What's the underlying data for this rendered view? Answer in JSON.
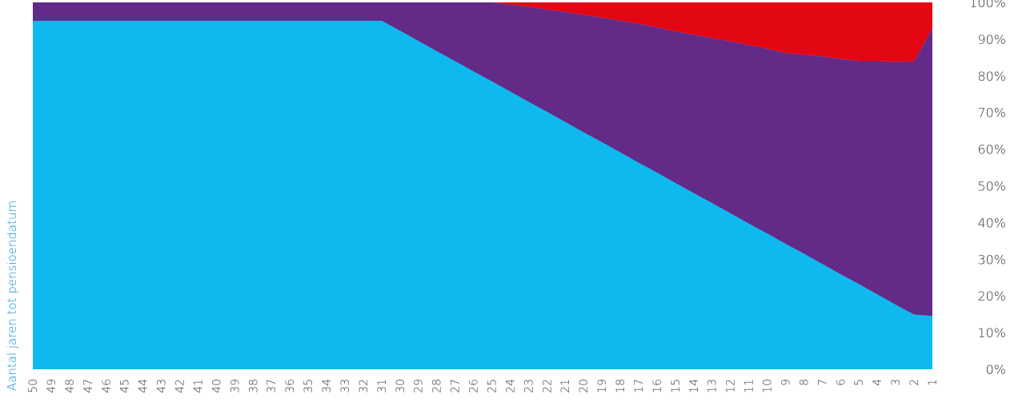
{
  "chart_data": {
    "type": "area",
    "stacked": true,
    "ylabel": "Aantal jaren tot pensioendatum",
    "ylim": [
      0,
      100
    ],
    "y_axis_position": "right",
    "x_ticks": [
      "50",
      "49",
      "48",
      "47",
      "46",
      "45",
      "44",
      "43",
      "42",
      "41",
      "40",
      "39",
      "38",
      "37",
      "36",
      "35",
      "34",
      "33",
      "32",
      "31",
      "30",
      "29",
      "28",
      "27",
      "26",
      "25",
      "24",
      "23",
      "22",
      "21",
      "20",
      "19",
      "18",
      "17",
      "16",
      "15",
      "14",
      "13",
      "12",
      "11",
      "10",
      "9",
      "8",
      "7",
      "6",
      "5",
      "4",
      "3",
      "2",
      "1"
    ],
    "y_ticks": [
      "0%",
      "10%",
      "20%",
      "30%",
      "40%",
      "50%",
      "60%",
      "70%",
      "80%",
      "90%",
      "100%"
    ],
    "x": [
      50,
      49,
      48,
      47,
      46,
      45,
      44,
      43,
      42,
      41,
      40,
      39,
      38,
      37,
      36,
      35,
      34,
      33,
      32,
      31,
      30,
      29,
      28,
      27,
      26,
      25,
      24,
      23,
      22,
      21,
      20,
      19,
      18,
      17,
      16,
      15,
      14,
      13,
      12,
      11,
      10,
      9,
      8,
      7,
      6,
      5,
      4,
      3,
      2,
      1
    ],
    "series": [
      {
        "color": "#0db9ee",
        "values": [
          95,
          95,
          95,
          95,
          95,
          95,
          95,
          95,
          95,
          95,
          95,
          95,
          95,
          95,
          95,
          95,
          95,
          95,
          95,
          95,
          92.3,
          89.5,
          86.7,
          84,
          81.2,
          78.5,
          75.7,
          72.9,
          70.2,
          67.4,
          64.6,
          61.9,
          59.1,
          56.3,
          53.6,
          50.8,
          48,
          45.3,
          42.5,
          39.7,
          37,
          34.2,
          31.5,
          28.7,
          25.9,
          23.2,
          20.4,
          17.6,
          14.9,
          14.5
        ]
      },
      {
        "color": "#632a87",
        "values": [
          5,
          5,
          5,
          5,
          5,
          5,
          5,
          5,
          5,
          5,
          5,
          5,
          5,
          5,
          5,
          5,
          5,
          5,
          5,
          5,
          7.7,
          10.5,
          13.3,
          16,
          18.8,
          21.5,
          23.7,
          25.9,
          27.9,
          30,
          32,
          34,
          35.9,
          37.9,
          39.6,
          41.3,
          43.2,
          45,
          46.9,
          48.7,
          50.4,
          52,
          54.3,
          56.6,
          58.7,
          60.8,
          63.6,
          66.2,
          69,
          78.5
        ]
      },
      {
        "color": "#e30613",
        "values": [
          0,
          0,
          0,
          0,
          0,
          0,
          0,
          0,
          0,
          0,
          0,
          0,
          0,
          0,
          0,
          0,
          0,
          0,
          0,
          0,
          0,
          0,
          0,
          0,
          0,
          0,
          0.6,
          1.2,
          1.9,
          2.6,
          3.4,
          4.1,
          5,
          5.8,
          6.8,
          7.9,
          8.8,
          9.7,
          10.6,
          11.6,
          12.6,
          13.8,
          14.2,
          14.7,
          15.4,
          16,
          16,
          16.2,
          16.1,
          7
        ]
      }
    ],
    "grid": false,
    "legend": "none"
  },
  "colors": {
    "axis_title": "#0d8fd0",
    "tick_text": "#333333"
  }
}
